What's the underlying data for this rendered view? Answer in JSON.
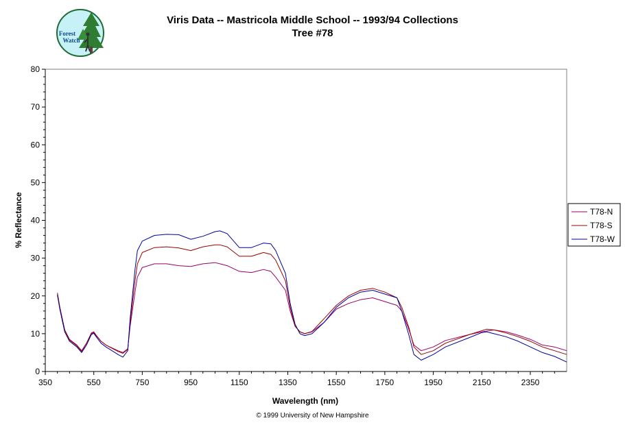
{
  "logo": {
    "line1": "Forest",
    "line2": "Watch"
  },
  "header": {
    "title": "Viris Data -- Mastricola Middle School -- 1993/94 Collections",
    "subtitle": "Tree #78"
  },
  "footer": {
    "copyright": "© 1999 University of New Hampshire"
  },
  "chart_data": {
    "type": "line",
    "title": "Viris Data -- Mastricola Middle School -- 1993/94 Collections",
    "subtitle": "Tree #78",
    "xlabel": "Wavelength (nm)",
    "ylabel": "% Reflectance",
    "xlim": [
      350,
      2500
    ],
    "ylim": [
      0,
      80
    ],
    "xticks": [
      350,
      550,
      750,
      950,
      1150,
      1350,
      1550,
      1750,
      1950,
      2150,
      2350
    ],
    "yticks": [
      0,
      10,
      20,
      30,
      40,
      50,
      60,
      70,
      80
    ],
    "grid": false,
    "legend_position": "right",
    "series": [
      {
        "name": "T78-N",
        "color": "#990066",
        "x": [
          400,
          410,
          430,
          450,
          480,
          500,
          520,
          540,
          550,
          560,
          580,
          600,
          650,
          670,
          690,
          700,
          720,
          730,
          750,
          800,
          850,
          900,
          950,
          1000,
          1050,
          1070,
          1100,
          1150,
          1200,
          1250,
          1280,
          1300,
          1340,
          1360,
          1380,
          1400,
          1420,
          1450,
          1500,
          1550,
          1600,
          1650,
          1700,
          1750,
          1800,
          1820,
          1850,
          1870,
          1900,
          1950,
          2000,
          2100,
          2150,
          2170,
          2200,
          2250,
          2300,
          2350,
          2400,
          2450,
          2500
        ],
        "y": [
          20.5,
          17,
          11,
          8.5,
          7,
          5.5,
          7.5,
          10,
          10.3,
          9.5,
          8,
          7,
          5.5,
          5,
          6,
          12,
          21,
          25,
          27.5,
          28.5,
          28.5,
          28,
          27.8,
          28.5,
          28.8,
          28.5,
          28,
          26.5,
          26.2,
          27,
          26.5,
          25,
          21.5,
          16,
          12,
          10.5,
          10,
          10.5,
          13,
          16.5,
          18,
          19,
          19.5,
          18.5,
          17.5,
          16,
          11,
          7,
          5.5,
          6.5,
          8.2,
          9.8,
          10.5,
          10.7,
          11,
          10.5,
          9.6,
          8.5,
          7,
          6.5,
          5.5
        ]
      },
      {
        "name": "T78-S",
        "color": "#990000",
        "x": [
          400,
          410,
          430,
          450,
          480,
          500,
          520,
          540,
          550,
          560,
          580,
          600,
          650,
          670,
          690,
          700,
          720,
          730,
          750,
          800,
          850,
          900,
          950,
          1000,
          1050,
          1070,
          1100,
          1150,
          1200,
          1250,
          1280,
          1300,
          1340,
          1360,
          1380,
          1400,
          1420,
          1450,
          1500,
          1550,
          1600,
          1650,
          1700,
          1750,
          1800,
          1820,
          1850,
          1870,
          1900,
          1950,
          2000,
          2100,
          2150,
          2170,
          2200,
          2250,
          2300,
          2350,
          2400,
          2450,
          2500
        ],
        "y": [
          20.8,
          17,
          11,
          8.3,
          6.8,
          5.3,
          7.5,
          10.2,
          10.5,
          9.6,
          8,
          7,
          5.3,
          4.8,
          5.8,
          13,
          24,
          28.5,
          31.5,
          32.8,
          33,
          32.7,
          32,
          33,
          33.5,
          33.5,
          33,
          30.5,
          30.5,
          31.5,
          31,
          29.5,
          24,
          17,
          12,
          10.5,
          10,
          10.6,
          14,
          17.5,
          20,
          21.5,
          22,
          21,
          19.5,
          17,
          11.5,
          6.5,
          4.5,
          5.5,
          7.5,
          9.8,
          10.8,
          11.2,
          11,
          10.2,
          9.2,
          8,
          6.5,
          5.5,
          4.5
        ]
      },
      {
        "name": "T78-W",
        "color": "#000099",
        "x": [
          400,
          410,
          430,
          450,
          480,
          500,
          520,
          540,
          550,
          560,
          580,
          600,
          650,
          670,
          690,
          700,
          720,
          730,
          750,
          800,
          850,
          900,
          950,
          1000,
          1050,
          1070,
          1100,
          1150,
          1200,
          1250,
          1280,
          1300,
          1340,
          1360,
          1380,
          1400,
          1420,
          1450,
          1500,
          1550,
          1600,
          1650,
          1700,
          1750,
          1800,
          1820,
          1850,
          1870,
          1900,
          1950,
          2000,
          2100,
          2150,
          2170,
          2200,
          2250,
          2300,
          2350,
          2400,
          2450,
          2500
        ],
        "y": [
          20.2,
          16.5,
          10.5,
          8,
          6.5,
          5,
          7,
          9.8,
          10.1,
          9.2,
          7.5,
          6.5,
          4.5,
          3.8,
          5.5,
          14,
          27,
          32,
          34.5,
          36,
          36.3,
          36.2,
          35,
          35.8,
          37,
          37.2,
          36.5,
          32.8,
          32.8,
          34,
          33.8,
          32,
          26,
          18,
          12.5,
          10,
          9.5,
          10,
          13,
          17,
          19.5,
          21,
          21.5,
          20.5,
          19.5,
          16,
          9.5,
          4.5,
          3,
          4.5,
          6.5,
          9,
          10.3,
          10.5,
          10,
          9.2,
          8,
          6.5,
          5,
          4,
          2.5
        ]
      }
    ]
  }
}
